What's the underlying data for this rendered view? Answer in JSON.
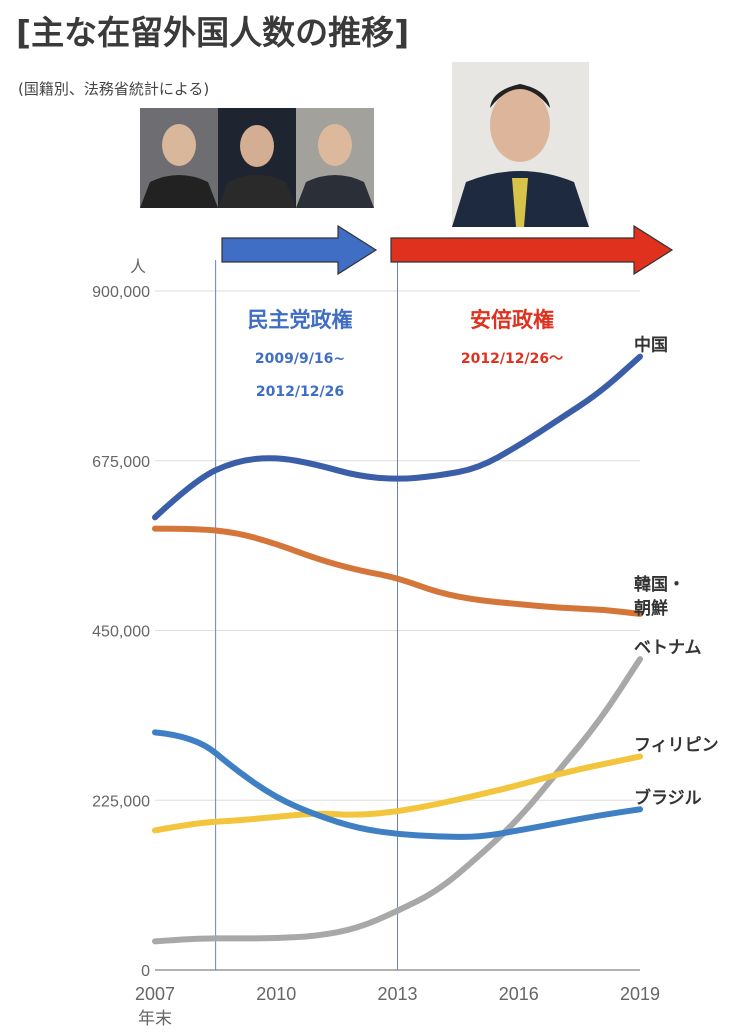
{
  "title": "[主な在留外国人数の推移]",
  "subtitle": "(国籍別、法務省統計による)",
  "colors": {
    "dpj": "#3f6ec4",
    "abe": "#e0301e",
    "grid": "#dddddd",
    "axis": "#999999"
  },
  "photos": [
    {
      "name": "portrait-1",
      "caption": ""
    },
    {
      "name": "portrait-2",
      "caption": ""
    },
    {
      "name": "portrait-3",
      "caption": ""
    },
    {
      "name": "portrait-abe",
      "caption": ""
    }
  ],
  "eras": [
    {
      "name": "dpj",
      "label": "民主党政権",
      "date_line1": "2009/9/16~",
      "date_line2": "2012/12/26",
      "start_x": 2008.5,
      "end_x": 2013.0
    },
    {
      "name": "abe",
      "label": "安倍政権",
      "date_line1": "2012/12/26～",
      "date_line2": "",
      "start_x": 2013.0,
      "end_x": 2020.0
    }
  ],
  "chart_data": {
    "type": "line",
    "title": "[主な在留外国人数の推移]",
    "ylabel": "人",
    "xlabel": "年末",
    "ylim": [
      0,
      900000
    ],
    "xlim": [
      2007,
      2019
    ],
    "yticks": [
      0,
      225000,
      450000,
      675000,
      900000
    ],
    "yticklabels": [
      "0",
      "225,000",
      "450,000",
      "675,000",
      "900,000"
    ],
    "xticks": [
      2007,
      2010,
      2013,
      2016,
      2019
    ],
    "xticklabels": [
      "2007",
      "2010",
      "2013",
      "2016",
      "2019"
    ],
    "x": [
      2007,
      2008,
      2009,
      2010,
      2011,
      2012,
      2013,
      2014,
      2015,
      2016,
      2017,
      2018,
      2019
    ],
    "grid": true,
    "series": [
      {
        "name": "中国",
        "color": "#3b5ea8",
        "values": [
          600000,
          650000,
          675000,
          680000,
          670000,
          655000,
          650000,
          655000,
          665000,
          695000,
          730000,
          765000,
          813000
        ]
      },
      {
        "name": "韓国・朝鮮",
        "color": "#d4763a",
        "values": [
          585000,
          585000,
          580000,
          565000,
          545000,
          530000,
          520000,
          500000,
          490000,
          485000,
          480000,
          478000,
          472000
        ]
      },
      {
        "name": "ベトナム",
        "color": "#a8a8a8",
        "values": [
          38000,
          42000,
          42000,
          42000,
          45000,
          55000,
          78000,
          105000,
          150000,
          200000,
          265000,
          330000,
          412000
        ]
      },
      {
        "name": "フィリピン",
        "color": "#f2c53d",
        "values": [
          185000,
          195000,
          198000,
          203000,
          208000,
          205000,
          210000,
          220000,
          232000,
          245000,
          260000,
          272000,
          283000
        ]
      },
      {
        "name": "ブラジル",
        "color": "#3f7fc4",
        "values": [
          315000,
          310000,
          265000,
          228000,
          205000,
          188000,
          180000,
          177000,
          176000,
          185000,
          195000,
          205000,
          213000
        ]
      }
    ]
  }
}
